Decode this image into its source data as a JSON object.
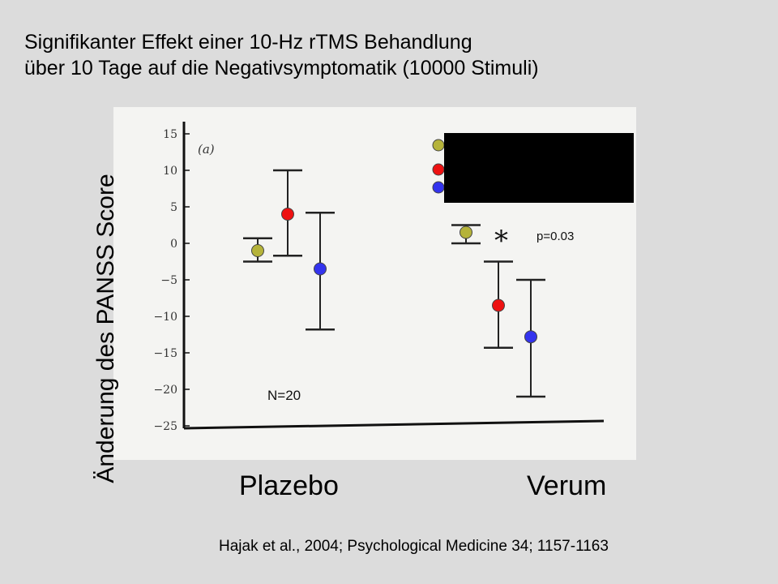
{
  "title_line1": "Signifikanter Effekt einer 10-Hz rTMS Behandlung",
  "title_line2": "über 10 Tage auf die Negativsymptomatik (10000 Stimuli)",
  "ylabel": "Änderung des PANSS Score",
  "citation": "Hajak et al., 2004; Psychological Medicine 34; 1157-1163",
  "panel_label": "(a)",
  "n_label": "N=20",
  "p_label": "p=0.03",
  "star": "*",
  "colors": {
    "olive": "#b5b33a",
    "red": "#ee1111",
    "blue": "#3333ee",
    "legend_box": "#000000",
    "plot_bg": "#f4f4f2"
  },
  "chart_data": {
    "type": "scatter",
    "categories": [
      "Plazebo",
      "Verum"
    ],
    "ylim": [
      -25,
      15
    ],
    "yticks": [
      15,
      10,
      5,
      0,
      -5,
      -10,
      -15,
      -20,
      -25
    ],
    "ytick_labels": [
      "15",
      "10",
      "5",
      "0",
      "−5",
      "−10",
      "−15",
      "−20",
      "−25"
    ],
    "series": [
      {
        "color": "olive",
        "points": [
          {
            "category": "Plazebo",
            "mean": -1,
            "ci_low": -2.5,
            "ci_high": 0.7
          },
          {
            "category": "Verum",
            "mean": 1.5,
            "ci_low": 0,
            "ci_high": 2.5
          }
        ]
      },
      {
        "color": "red",
        "points": [
          {
            "category": "Plazebo",
            "mean": 4,
            "ci_low": -1.7,
            "ci_high": 10
          },
          {
            "category": "Verum",
            "mean": -8.5,
            "ci_low": -14.3,
            "ci_high": -2.5
          }
        ]
      },
      {
        "color": "blue",
        "points": [
          {
            "category": "Plazebo",
            "mean": -3.5,
            "ci_low": -11.8,
            "ci_high": 4.2
          },
          {
            "category": "Verum",
            "mean": -12.8,
            "ci_low": -21,
            "ci_high": -5
          }
        ]
      }
    ]
  }
}
